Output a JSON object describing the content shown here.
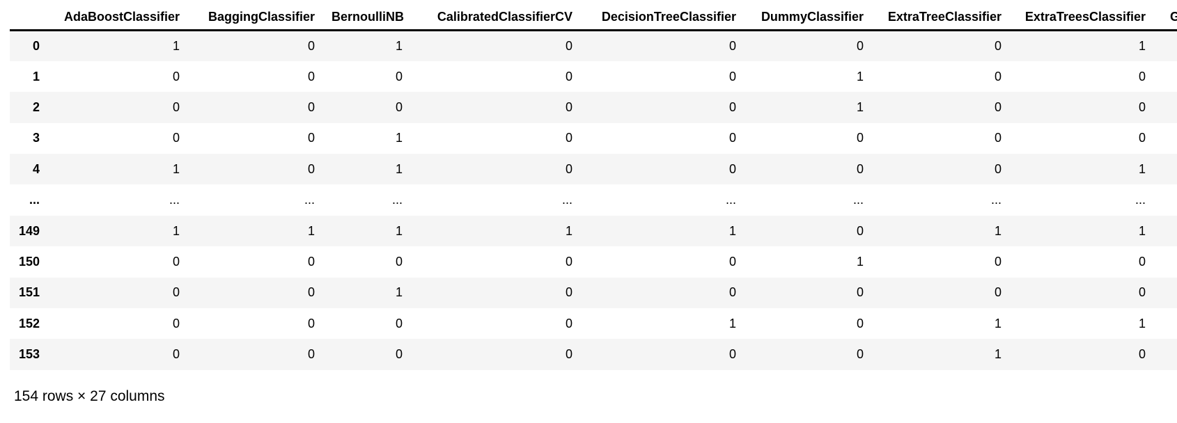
{
  "table": {
    "index_header": "",
    "columns": [
      "AdaBoostClassifier",
      "BaggingClassifier",
      "BernoulliNB",
      "CalibratedClassifierCV",
      "DecisionTreeClassifier",
      "DummyClassifier",
      "ExtraTreeClassifier",
      "ExtraTreesClassifier"
    ],
    "partial_last_column": "G",
    "rows": [
      {
        "index": "0",
        "values": [
          "1",
          "0",
          "1",
          "0",
          "0",
          "0",
          "0",
          "1"
        ]
      },
      {
        "index": "1",
        "values": [
          "0",
          "0",
          "0",
          "0",
          "0",
          "1",
          "0",
          "0"
        ]
      },
      {
        "index": "2",
        "values": [
          "0",
          "0",
          "0",
          "0",
          "0",
          "1",
          "0",
          "0"
        ]
      },
      {
        "index": "3",
        "values": [
          "0",
          "0",
          "1",
          "0",
          "0",
          "0",
          "0",
          "0"
        ]
      },
      {
        "index": "4",
        "values": [
          "1",
          "0",
          "1",
          "0",
          "0",
          "0",
          "0",
          "1"
        ]
      },
      {
        "index": "...",
        "values": [
          "...",
          "...",
          "...",
          "...",
          "...",
          "...",
          "...",
          "..."
        ]
      },
      {
        "index": "149",
        "values": [
          "1",
          "1",
          "1",
          "1",
          "1",
          "0",
          "1",
          "1"
        ]
      },
      {
        "index": "150",
        "values": [
          "0",
          "0",
          "0",
          "0",
          "0",
          "1",
          "0",
          "0"
        ]
      },
      {
        "index": "151",
        "values": [
          "0",
          "0",
          "1",
          "0",
          "0",
          "0",
          "0",
          "0"
        ]
      },
      {
        "index": "152",
        "values": [
          "0",
          "0",
          "0",
          "0",
          "1",
          "0",
          "1",
          "1"
        ]
      },
      {
        "index": "153",
        "values": [
          "0",
          "0",
          "0",
          "0",
          "0",
          "0",
          "1",
          "0"
        ]
      }
    ],
    "summary": "154 rows × 27 columns"
  },
  "colors": {
    "stripe_background": "#f5f5f5",
    "header_border": "#000000",
    "text": "#000000"
  }
}
